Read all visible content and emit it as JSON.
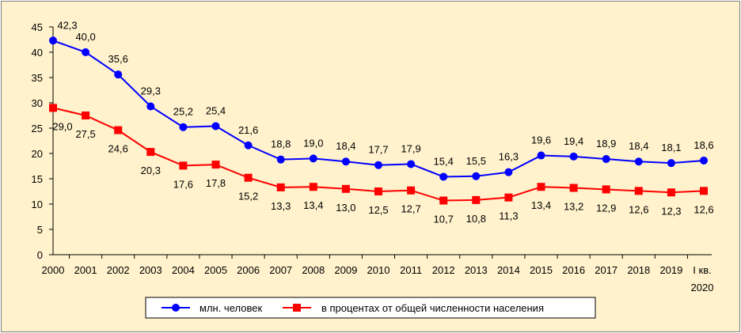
{
  "chart_data": {
    "type": "line",
    "categories": [
      "2000",
      "2001",
      "2002",
      "2003",
      "2004",
      "2005",
      "2006",
      "2007",
      "2008",
      "2009",
      "2010",
      "2011",
      "2012",
      "2013",
      "2014",
      "2015",
      "2016",
      "2017",
      "2018",
      "2019",
      "I кв. 2020"
    ],
    "series": [
      {
        "name": "млн. человек",
        "color": "#0000ff",
        "marker": "circle",
        "values": [
          42.3,
          40.0,
          35.6,
          29.3,
          25.2,
          25.4,
          21.6,
          18.8,
          19.0,
          18.4,
          17.7,
          17.9,
          15.4,
          15.5,
          16.3,
          19.6,
          19.4,
          18.9,
          18.4,
          18.1,
          18.6
        ],
        "labels": [
          "42,3",
          "40,0",
          "35,6",
          "29,3",
          "25,2",
          "25,4",
          "21,6",
          "18,8",
          "19,0",
          "18,4",
          "17,7",
          "17,9",
          "15,4",
          "15,5",
          "16,3",
          "19,6",
          "19,4",
          "18,9",
          "18,4",
          "18,1",
          "18,6"
        ]
      },
      {
        "name": "в процентах от общей численности населения",
        "color": "#ff0000",
        "marker": "square",
        "values": [
          29.0,
          27.5,
          24.6,
          20.3,
          17.6,
          17.8,
          15.2,
          13.3,
          13.4,
          13.0,
          12.5,
          12.7,
          10.7,
          10.8,
          11.3,
          13.4,
          13.2,
          12.9,
          12.6,
          12.3,
          12.6
        ],
        "labels": [
          "29,0",
          "27,5",
          "24,6",
          "20,3",
          "17,6",
          "17,8",
          "15,2",
          "13,3",
          "13,4",
          "13,0",
          "12,5",
          "12,7",
          "10,7",
          "10,8",
          "11,3",
          "13,4",
          "13,2",
          "12,9",
          "12,6",
          "12,3",
          "12,6"
        ]
      }
    ],
    "yticks": [
      "0",
      "5",
      "10",
      "15",
      "20",
      "25",
      "30",
      "35",
      "40",
      "45"
    ],
    "ylim": [
      0,
      45
    ],
    "grid": false,
    "legend_position": "bottom",
    "background": "#fff2cc"
  }
}
